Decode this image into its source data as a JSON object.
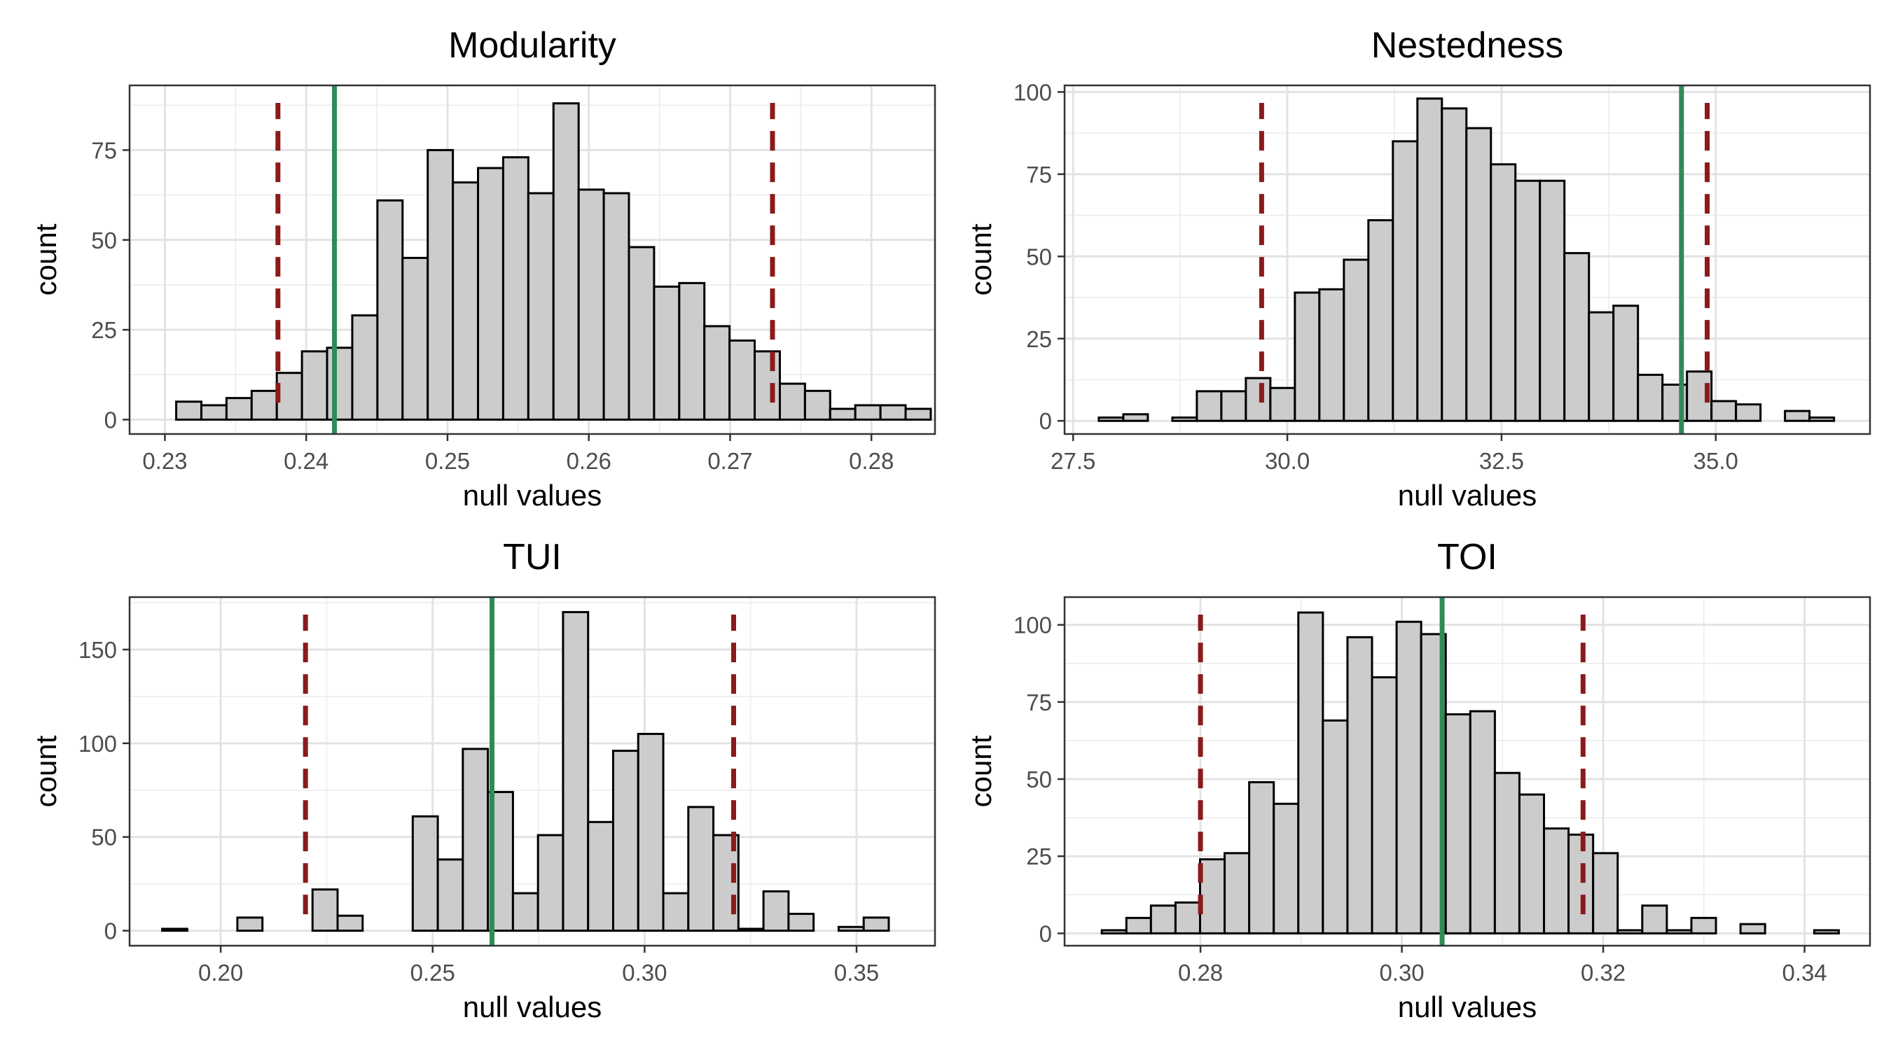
{
  "chart_data": [
    {
      "type": "bar",
      "title": "Modularity",
      "xlabel": "null values",
      "ylabel": "count",
      "xlim": [
        0.2275,
        0.2845
      ],
      "ylim": [
        -4,
        93
      ],
      "xticks": [
        0.23,
        0.24,
        0.25,
        0.26,
        0.27,
        0.28
      ],
      "xtick_labels": [
        "0.23",
        "0.24",
        "0.25",
        "0.26",
        "0.27",
        "0.28"
      ],
      "yticks": [
        0,
        25,
        50,
        75
      ],
      "ytick_labels": [
        "0",
        "25",
        "50",
        "75"
      ],
      "bins": {
        "start": 0.2308,
        "width": 0.00178
      },
      "values": [
        5,
        4,
        6,
        8,
        13,
        19,
        20,
        29,
        61,
        45,
        75,
        66,
        70,
        73,
        63,
        88,
        64,
        63,
        48,
        37,
        38,
        26,
        22,
        19,
        10,
        8,
        3,
        4,
        4,
        3
      ],
      "observed": 0.242,
      "ci_lower": 0.238,
      "ci_upper": 0.273,
      "grid": true,
      "bar_fill": "#cccccc",
      "bar_edge": "#000000",
      "observed_color": "#2e8b57",
      "ci_color": "#8b1a1a"
    },
    {
      "type": "bar",
      "title": "Nestedness",
      "xlabel": "null values",
      "ylabel": "count",
      "xlim": [
        27.4,
        36.8
      ],
      "ylim": [
        -4,
        102
      ],
      "xticks": [
        27.5,
        30.0,
        32.5,
        35.0
      ],
      "xtick_labels": [
        "27.5",
        "30.0",
        "32.5",
        "35.0"
      ],
      "yticks": [
        0,
        25,
        50,
        75,
        100
      ],
      "ytick_labels": [
        "0",
        "25",
        "50",
        "75",
        "100"
      ],
      "bins": {
        "start": 27.8,
        "width": 0.286
      },
      "values": [
        1,
        2,
        0,
        1,
        9,
        9,
        13,
        10,
        39,
        40,
        49,
        61,
        85,
        98,
        95,
        89,
        78,
        73,
        73,
        51,
        33,
        35,
        14,
        11,
        15,
        6,
        5,
        0,
        3,
        1
      ],
      "observed": 34.6,
      "ci_lower": 29.7,
      "ci_upper": 34.9,
      "grid": true,
      "bar_fill": "#cccccc",
      "bar_edge": "#000000",
      "observed_color": "#2e8b57",
      "ci_color": "#8b1a1a"
    },
    {
      "type": "bar",
      "title": "TUI",
      "xlabel": "null values",
      "ylabel": "count",
      "xlim": [
        0.1785,
        0.3685
      ],
      "ylim": [
        -8,
        178
      ],
      "xticks": [
        0.2,
        0.25,
        0.3,
        0.35
      ],
      "xtick_labels": [
        "0.20",
        "0.25",
        "0.30",
        "0.35"
      ],
      "yticks": [
        0,
        50,
        100,
        150
      ],
      "ytick_labels": [
        "0",
        "50",
        "100",
        "150"
      ],
      "bins": {
        "start": 0.1862,
        "width": 0.00591
      },
      "values": [
        1,
        0,
        0,
        7,
        0,
        0,
        22,
        8,
        0,
        0,
        61,
        38,
        97,
        74,
        20,
        51,
        170,
        58,
        96,
        105,
        20,
        66,
        51,
        1,
        21,
        9,
        0,
        2,
        7,
        0
      ],
      "observed": 0.264,
      "ci_lower": 0.22,
      "ci_upper": 0.321,
      "grid": true,
      "bar_fill": "#cccccc",
      "bar_edge": "#000000",
      "observed_color": "#2e8b57",
      "ci_color": "#8b1a1a"
    },
    {
      "type": "bar",
      "title": "TOI",
      "xlabel": "null values",
      "ylabel": "count",
      "xlim": [
        0.2665,
        0.3465
      ],
      "ylim": [
        -4,
        109
      ],
      "xticks": [
        0.28,
        0.3,
        0.32,
        0.34
      ],
      "xtick_labels": [
        "0.28",
        "0.30",
        "0.32",
        "0.34"
      ],
      "yticks": [
        0,
        25,
        50,
        75,
        100
      ],
      "ytick_labels": [
        "0",
        "25",
        "50",
        "75",
        "100"
      ],
      "bins": {
        "start": 0.2702,
        "width": 0.00244
      },
      "values": [
        1,
        5,
        9,
        10,
        24,
        26,
        49,
        42,
        104,
        69,
        96,
        83,
        101,
        97,
        71,
        72,
        52,
        45,
        34,
        32,
        26,
        1,
        9,
        1,
        5,
        0,
        3,
        0,
        0,
        1
      ],
      "observed": 0.304,
      "ci_lower": 0.28,
      "ci_upper": 0.318,
      "grid": true,
      "bar_fill": "#cccccc",
      "bar_edge": "#000000",
      "observed_color": "#2e8b57",
      "ci_color": "#8b1a1a"
    }
  ]
}
